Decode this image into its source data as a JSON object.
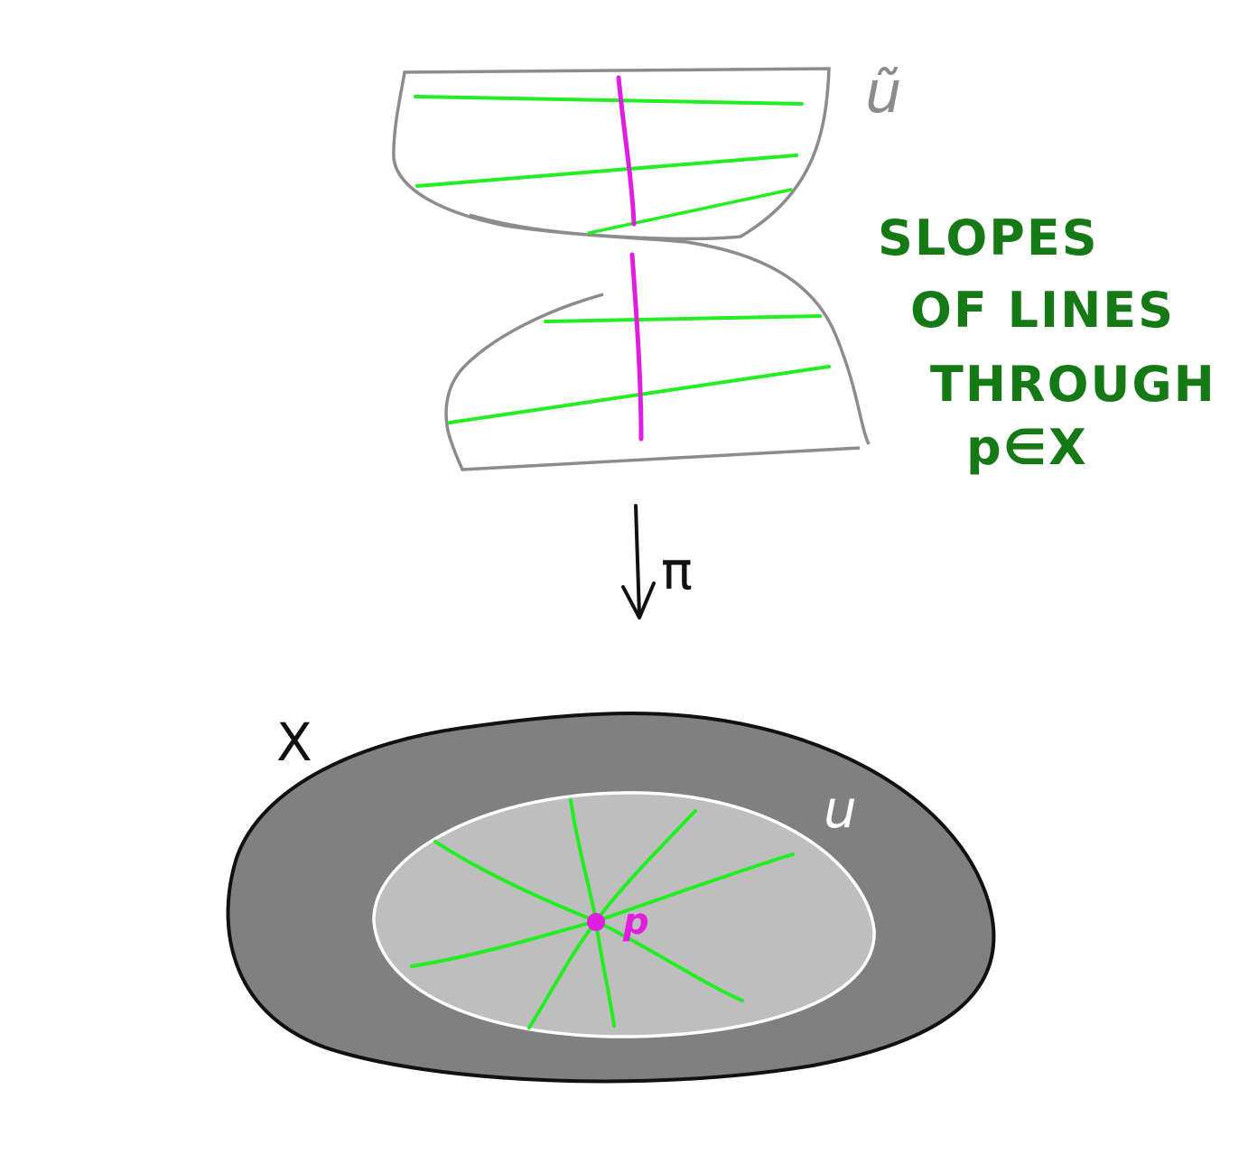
{
  "diagram": {
    "labels": {
      "cover_space": "ũ",
      "annotation_lines": [
        "SLOPES",
        "OF LINES",
        "THROUGH",
        "p∈X"
      ],
      "map": "π",
      "space": "X",
      "neighborhood": "u",
      "point": "p"
    },
    "colors": {
      "outline": "#111111",
      "cover_outline": "#8c8c8c",
      "space_fill": "#808080",
      "neighborhood_fill": "#bebebe",
      "neighborhood_outline": "#ffffff",
      "lines": "#22ee22",
      "fiber": "#e01ee0",
      "annotation": "#157a15"
    }
  }
}
